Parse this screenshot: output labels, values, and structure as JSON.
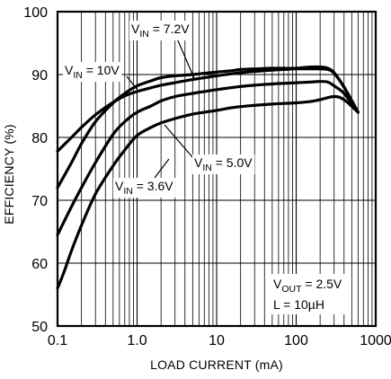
{
  "chart_data": {
    "type": "line",
    "xscale": "log",
    "xlim": [
      0.1,
      1000
    ],
    "ylim": [
      50,
      100
    ],
    "grid": true,
    "xlabel": "LOAD CURRENT (mA)",
    "ylabel": "EFFICIENCY (%)",
    "x_ticks": [
      "0.1",
      "1.0",
      "10",
      "100",
      "1000"
    ],
    "y_ticks": [
      "50",
      "60",
      "70",
      "80",
      "90",
      "100"
    ],
    "series": [
      {
        "name_main": "V",
        "name_sub": "IN",
        "name_value": " = 7.2V",
        "x": [
          0.1,
          0.15,
          0.2,
          0.3,
          0.5,
          0.7,
          1.0,
          1.5,
          2,
          3,
          5,
          7,
          10,
          15,
          20,
          30,
          50,
          70,
          100,
          150,
          200,
          250,
          300,
          400,
          600
        ],
        "y": [
          72,
          76,
          79,
          82.5,
          85.5,
          87,
          88.2,
          89,
          89.5,
          89.8,
          90,
          90.2,
          90.4,
          90.6,
          90.8,
          90.9,
          91,
          91,
          91,
          91.2,
          91.2,
          91,
          90.3,
          88,
          84
        ]
      },
      {
        "name_main": "V",
        "name_sub": "IN",
        "name_value": " = 10V",
        "x": [
          0.1,
          0.15,
          0.2,
          0.3,
          0.5,
          0.7,
          1.0,
          1.5,
          2,
          3,
          5,
          7,
          10,
          15,
          20,
          30,
          50,
          70,
          100,
          150,
          200,
          250,
          300,
          400,
          600
        ],
        "y": [
          77.8,
          80,
          81.6,
          83.6,
          85.6,
          86.6,
          87.3,
          87.9,
          88.3,
          88.7,
          89.2,
          89.5,
          89.8,
          90.1,
          90.3,
          90.5,
          90.7,
          90.8,
          90.9,
          90.9,
          90.9,
          90.8,
          90.2,
          88,
          84
        ]
      },
      {
        "name_main": "V",
        "name_sub": "IN",
        "name_value": " = 5.0V",
        "x": [
          0.1,
          0.15,
          0.2,
          0.3,
          0.5,
          0.7,
          1.0,
          1.5,
          2,
          3,
          5,
          7,
          10,
          15,
          20,
          30,
          50,
          70,
          100,
          150,
          200,
          250,
          300,
          400,
          600
        ],
        "y": [
          64.5,
          69,
          72,
          76,
          80.5,
          82.5,
          84,
          85,
          85.8,
          86.5,
          87,
          87.3,
          87.6,
          87.9,
          88.1,
          88.3,
          88.5,
          88.6,
          88.7,
          88.8,
          88.9,
          88.8,
          88.2,
          87,
          84
        ]
      },
      {
        "name_main": "V",
        "name_sub": "IN",
        "name_value": " = 3.6V",
        "x": [
          0.1,
          0.12,
          0.15,
          0.2,
          0.3,
          0.5,
          0.7,
          1.0,
          1.5,
          2,
          3,
          5,
          7,
          10,
          15,
          20,
          30,
          50,
          70,
          100,
          150,
          200,
          300,
          400,
          600
        ],
        "y": [
          56,
          58.5,
          62,
          66,
          71,
          75.5,
          78,
          80.3,
          81.6,
          82.3,
          83,
          83.7,
          84,
          84.3,
          84.7,
          84.9,
          85.1,
          85.3,
          85.4,
          85.5,
          85.7,
          86,
          86.5,
          86,
          84
        ]
      }
    ],
    "annotations": [
      {
        "main": "V",
        "sub": "OUT",
        "value": " = 2.5V"
      },
      {
        "main": "L = 10µH",
        "sub": "",
        "value": ""
      }
    ]
  }
}
